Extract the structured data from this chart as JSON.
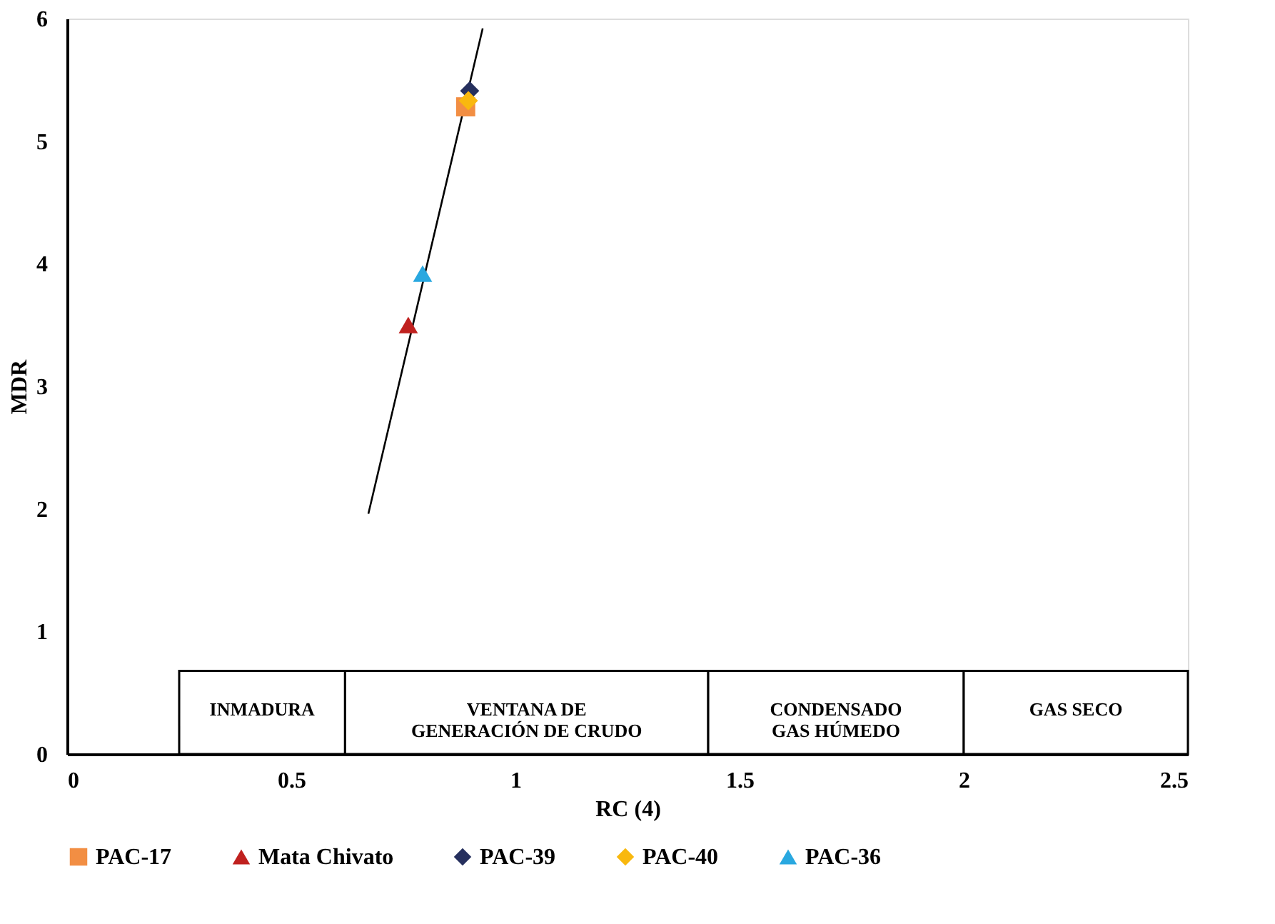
{
  "chart_data": {
    "type": "scatter",
    "xlabel": "RC (4)",
    "ylabel": "MDR",
    "xlim": [
      0,
      2.5
    ],
    "ylim": [
      0,
      6
    ],
    "xticks": [
      0,
      0.5,
      1,
      1.5,
      2,
      2.5
    ],
    "yticks": [
      0,
      1,
      2,
      3,
      4,
      5,
      6
    ],
    "grid": false,
    "legend": "bottom",
    "series": [
      {
        "name": "PAC-17",
        "color": "#f28e43",
        "marker": "square",
        "x": [
          0.889
        ],
        "values": [
          5.28
        ]
      },
      {
        "name": "Mata Chivato",
        "color": "#c0211f",
        "marker": "triangle",
        "x": [
          0.761
        ],
        "values": [
          3.5
        ]
      },
      {
        "name": "PAC-39",
        "color": "#26305e",
        "marker": "diamond",
        "x": [
          0.898
        ],
        "values": [
          5.41
        ]
      },
      {
        "name": "PAC-40",
        "color": "#f9b80e",
        "marker": "diamond",
        "x": [
          0.895
        ],
        "values": [
          5.33
        ]
      },
      {
        "name": "PAC-36",
        "color": "#29a8e0",
        "marker": "triangle",
        "x": [
          0.793
        ],
        "values": [
          3.92
        ]
      },
      {
        "type": "line",
        "color": "#000000",
        "x": [
          0.672,
          0.927
        ],
        "values": [
          1.96,
          5.92
        ]
      }
    ],
    "bands": [
      {
        "axis": "x",
        "from": 0.25,
        "to": 0.62,
        "label": "INMADURA",
        "color": "#ffffff"
      },
      {
        "axis": "x",
        "from": 0.62,
        "to": 1.43,
        "label": "VENTANA DE\nGENERACIÓN DE CRUDO",
        "color": "#ffffff"
      },
      {
        "axis": "x",
        "from": 1.43,
        "to": 2.0,
        "label": "CONDENSADO\nGAS HÚMEDO",
        "color": "#ffffff"
      },
      {
        "axis": "x",
        "from": 2.0,
        "to": 2.5,
        "label": "GAS SECO",
        "color": "#ffffff"
      }
    ]
  }
}
